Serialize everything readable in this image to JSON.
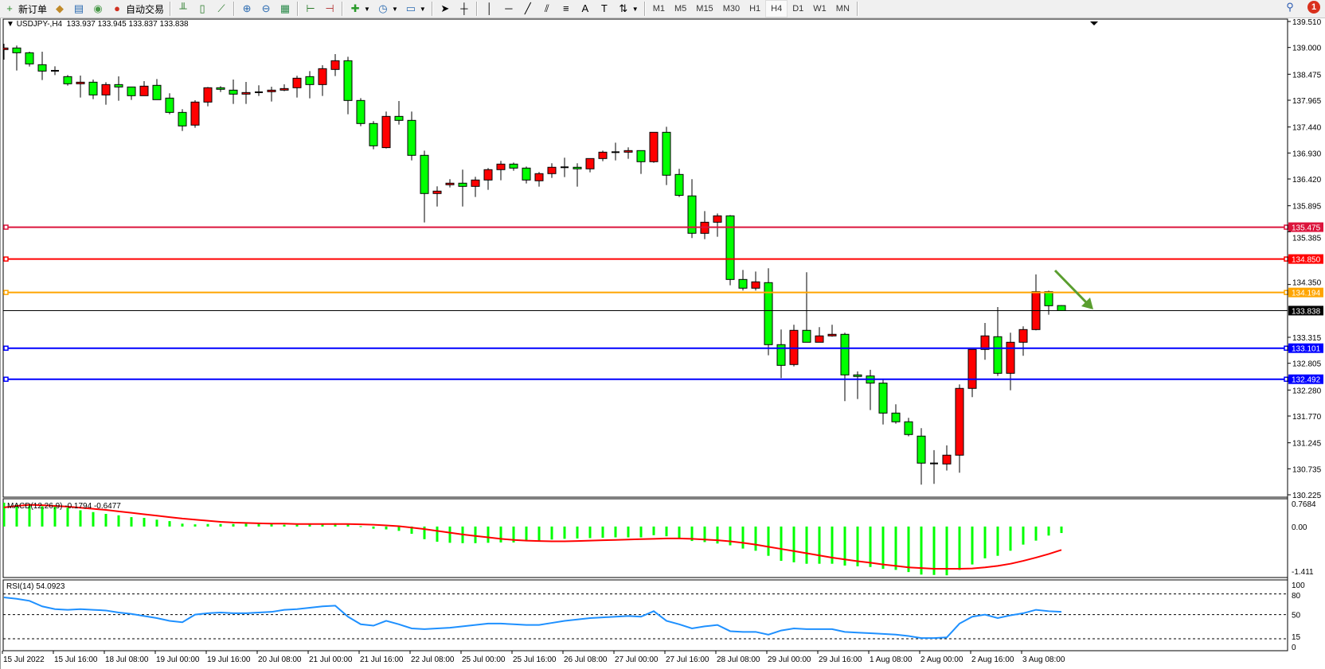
{
  "toolbar": {
    "new_order": "新订单",
    "auto_trading": "自动交易",
    "icons": [
      "new-order-icon",
      "market-watch-icon",
      "data-window-icon",
      "signal-icon",
      "auto-trading-icon",
      "bar-chart-icon",
      "candlestick-icon",
      "line-chart-icon",
      "zoom-in-icon",
      "zoom-out-icon",
      "tile-windows-icon",
      "chart-shift-icon",
      "auto-scroll-icon",
      "indicators-icon",
      "periods-icon",
      "templates-icon",
      "cursor-icon",
      "crosshair-icon",
      "vertical-line-icon",
      "horizontal-line-icon",
      "trendline-icon",
      "equidistant-channel-icon",
      "fibonacci-icon",
      "text-icon",
      "text-label-icon",
      "arrows-icon"
    ],
    "timeframes": [
      "M1",
      "M5",
      "M15",
      "M30",
      "H1",
      "H4",
      "D1",
      "W1",
      "MN"
    ],
    "active_timeframe": "H4",
    "notification_count": "1"
  },
  "chart": {
    "header": "USDJPY-,H4  133.937 133.945 133.837 133.838",
    "symbol": "USDJPY-",
    "timeframe": "H4",
    "ohlc": {
      "open": "133.937",
      "high": "133.945",
      "low": "133.837",
      "close": "133.838"
    },
    "colors": {
      "bull": "#ff0000",
      "bear": "#00ff00",
      "outline": "#000000",
      "arrow": "#5a9e2f"
    },
    "price_axis": [
      "139.510",
      "139.000",
      "138.475",
      "137.965",
      "137.440",
      "136.930",
      "136.420",
      "135.895",
      "135.385",
      "134.350",
      "133.315",
      "132.805",
      "132.280",
      "131.770",
      "131.245",
      "130.735",
      "130.225"
    ],
    "levels": [
      {
        "price": "135.475",
        "color": "#dc143c"
      },
      {
        "price": "134.850",
        "color": "#ff0000"
      },
      {
        "price": "134.194",
        "color": "#ffa500"
      },
      {
        "price": "133.838",
        "color": "#000000",
        "bid": true
      },
      {
        "price": "133.101",
        "color": "#0000ff"
      },
      {
        "price": "132.492",
        "color": "#0000ff"
      }
    ],
    "time_axis": [
      "15 Jul 2022",
      "15 Jul 16:00",
      "18 Jul 08:00",
      "19 Jul 00:00",
      "19 Jul 16:00",
      "20 Jul 08:00",
      "21 Jul 00:00",
      "21 Jul 16:00",
      "22 Jul 08:00",
      "25 Jul 00:00",
      "25 Jul 16:00",
      "26 Jul 08:00",
      "27 Jul 00:00",
      "27 Jul 16:00",
      "28 Jul 08:00",
      "29 Jul 00:00",
      "29 Jul 16:00",
      "1 Aug 08:00",
      "2 Aug 00:00",
      "2 Aug 16:00",
      "3 Aug 08:00"
    ]
  },
  "chart_data": [
    {
      "type": "candlestick",
      "title": "USDJPY-,H4",
      "ylim": [
        130.225,
        139.51
      ],
      "ohlc": [
        [
          138.959,
          139.073,
          138.761,
          138.99
        ],
        [
          138.99,
          139.037,
          138.548,
          138.896
        ],
        [
          138.896,
          138.917,
          138.626,
          138.678
        ],
        [
          138.662,
          138.917,
          138.361,
          138.537
        ],
        [
          138.543,
          138.631,
          138.459,
          138.537
        ],
        [
          138.428,
          138.459,
          138.251,
          138.288
        ],
        [
          138.288,
          138.449,
          138.017,
          138.319
        ],
        [
          138.319,
          138.371,
          137.986,
          138.069
        ],
        [
          138.069,
          138.319,
          137.877,
          138.272
        ],
        [
          138.272,
          138.433,
          137.955,
          138.225
        ],
        [
          138.225,
          138.225,
          137.971,
          138.054
        ],
        [
          138.054,
          138.34,
          138.054,
          138.241
        ],
        [
          138.257,
          138.381,
          137.976,
          137.976
        ],
        [
          138.007,
          138.101,
          137.69,
          137.726
        ],
        [
          137.726,
          137.789,
          137.362,
          137.461
        ],
        [
          137.477,
          137.965,
          137.425,
          137.929
        ],
        [
          137.929,
          138.225,
          137.846,
          138.21
        ],
        [
          138.21,
          138.241,
          138.127,
          138.179
        ],
        [
          138.163,
          138.371,
          137.893,
          138.085
        ],
        [
          138.085,
          138.324,
          137.893,
          138.116
        ],
        [
          138.121,
          138.257,
          138.049,
          138.116
        ],
        [
          138.132,
          138.231,
          137.939,
          138.163
        ],
        [
          138.163,
          138.277,
          138.142,
          138.194
        ],
        [
          138.21,
          138.444,
          138.017,
          138.397
        ],
        [
          138.428,
          138.537,
          138.002,
          138.272
        ],
        [
          138.272,
          138.652,
          138.049,
          138.584
        ],
        [
          138.569,
          138.87,
          138.439,
          138.74
        ],
        [
          138.74,
          138.818,
          137.69,
          137.96
        ],
        [
          137.96,
          138.007,
          137.456,
          137.508
        ],
        [
          137.508,
          137.555,
          137.003,
          137.071
        ],
        [
          137.035,
          137.742,
          137.019,
          137.648
        ],
        [
          137.648,
          137.95,
          137.487,
          137.57
        ],
        [
          137.57,
          137.742,
          136.785,
          136.884
        ],
        [
          136.884,
          136.977,
          135.568,
          136.135
        ],
        [
          136.135,
          136.275,
          135.88,
          136.182
        ],
        [
          136.307,
          136.416,
          136.255,
          136.338
        ],
        [
          136.338,
          136.603,
          135.88,
          136.275
        ],
        [
          136.275,
          136.463,
          136.067,
          136.4
        ],
        [
          136.4,
          136.634,
          136.208,
          136.603
        ],
        [
          136.603,
          136.775,
          136.395,
          136.712
        ],
        [
          136.712,
          136.743,
          136.582,
          136.634
        ],
        [
          136.634,
          136.665,
          136.333,
          136.4
        ],
        [
          136.385,
          136.556,
          136.27,
          136.525
        ],
        [
          136.525,
          136.728,
          136.442,
          136.65
        ],
        [
          136.65,
          136.837,
          136.457,
          136.65
        ],
        [
          136.65,
          136.728,
          136.27,
          136.619
        ],
        [
          136.619,
          136.821,
          136.551,
          136.821
        ],
        [
          136.821,
          136.977,
          136.769,
          136.946
        ],
        [
          136.946,
          137.133,
          136.785,
          136.946
        ],
        [
          136.946,
          137.04,
          136.816,
          136.977
        ],
        [
          136.977,
          136.977,
          136.52,
          136.759
        ],
        [
          136.759,
          137.336,
          136.738,
          137.336
        ],
        [
          137.336,
          137.445,
          136.301,
          136.494
        ],
        [
          136.509,
          136.619,
          136.067,
          136.099
        ],
        [
          136.088,
          136.416,
          135.261,
          135.355
        ],
        [
          135.354,
          135.791,
          135.24,
          135.572
        ],
        [
          135.572,
          135.744,
          135.286,
          135.697
        ],
        [
          135.697,
          135.713,
          134.335,
          134.449
        ],
        [
          134.449,
          134.636,
          134.231,
          134.278
        ],
        [
          134.278,
          134.605,
          134.231,
          134.402
        ],
        [
          134.387,
          134.668,
          132.962,
          133.17
        ],
        [
          133.17,
          133.466,
          132.515,
          132.764
        ],
        [
          132.78,
          133.56,
          132.744,
          133.451
        ],
        [
          133.451,
          134.59,
          133.217,
          133.217
        ],
        [
          133.217,
          133.513,
          133.217,
          133.342
        ],
        [
          133.342,
          133.56,
          133.326,
          133.373
        ],
        [
          133.373,
          133.404,
          132.062,
          132.577
        ],
        [
          132.577,
          132.645,
          132.104,
          132.546
        ],
        [
          132.556,
          132.676,
          131.886,
          132.416
        ],
        [
          132.416,
          132.494,
          131.605,
          131.828
        ],
        [
          131.828,
          132.0,
          131.62,
          131.657
        ],
        [
          131.657,
          131.735,
          131.371,
          131.407
        ],
        [
          131.376,
          131.532,
          130.424,
          130.846
        ],
        [
          130.84,
          131.1,
          130.44,
          130.84
        ],
        [
          130.83,
          131.194,
          130.7,
          131.002
        ],
        [
          131.002,
          132.39,
          130.658,
          132.312
        ],
        [
          132.312,
          133.076,
          132.14,
          133.076
        ],
        [
          133.076,
          133.596,
          132.874,
          133.342
        ],
        [
          133.326,
          133.908,
          132.556,
          132.608
        ],
        [
          132.608,
          133.404,
          132.276,
          133.217
        ],
        [
          133.217,
          133.529,
          132.952,
          133.466
        ],
        [
          133.466,
          134.548,
          133.451,
          134.21
        ],
        [
          134.21,
          134.23,
          133.758,
          133.934
        ],
        [
          133.937,
          133.945,
          133.837,
          133.838
        ]
      ]
    },
    {
      "type": "bar",
      "title": "MACD(12,26,9) -0.1794 -0.6477",
      "ylim": [
        -1.411,
        0.7684
      ],
      "axis_labels": [
        "0.7684",
        "0.00",
        "-1.411"
      ],
      "series": [
        {
          "name": "MACD",
          "color": "#00ff00",
          "values": [
            0.66,
            0.6,
            0.61,
            0.56,
            0.56,
            0.52,
            0.45,
            0.4,
            0.35,
            0.31,
            0.26,
            0.24,
            0.19,
            0.15,
            0.08,
            0.06,
            0.07,
            0.07,
            0.07,
            0.08,
            0.08,
            0.07,
            0.05,
            0.05,
            0.06,
            0.07,
            0.09,
            0.06,
            0.01,
            -0.06,
            -0.08,
            -0.12,
            -0.2,
            -0.35,
            -0.42,
            -0.45,
            -0.46,
            -0.46,
            -0.45,
            -0.44,
            -0.44,
            -0.4,
            -0.39,
            -0.36,
            -0.34,
            -0.33,
            -0.32,
            -0.31,
            -0.3,
            -0.3,
            -0.3,
            -0.24,
            -0.27,
            -0.32,
            -0.4,
            -0.43,
            -0.47,
            -0.52,
            -0.61,
            -0.67,
            -0.81,
            -0.95,
            -0.99,
            -1.03,
            -1.03,
            -1.03,
            -1.08,
            -1.1,
            -1.12,
            -1.17,
            -1.2,
            -1.26,
            -1.33,
            -1.34,
            -1.35,
            -1.2,
            -1.05,
            -0.88,
            -0.81,
            -0.67,
            -0.5,
            -0.39,
            -0.25,
            -0.1794
          ]
        },
        {
          "name": "Signal",
          "color": "#ff0000",
          "values": [
            0.53,
            0.57,
            0.6,
            0.59,
            0.57,
            0.55,
            0.52,
            0.49,
            0.46,
            0.42,
            0.38,
            0.34,
            0.3,
            0.26,
            0.22,
            0.19,
            0.16,
            0.13,
            0.11,
            0.1,
            0.09,
            0.08,
            0.08,
            0.07,
            0.07,
            0.07,
            0.07,
            0.07,
            0.06,
            0.05,
            0.03,
            0.01,
            -0.03,
            -0.07,
            -0.12,
            -0.17,
            -0.22,
            -0.26,
            -0.3,
            -0.34,
            -0.37,
            -0.39,
            -0.4,
            -0.41,
            -0.41,
            -0.4,
            -0.39,
            -0.38,
            -0.37,
            -0.36,
            -0.35,
            -0.34,
            -0.33,
            -0.33,
            -0.34,
            -0.36,
            -0.38,
            -0.41,
            -0.45,
            -0.5,
            -0.56,
            -0.62,
            -0.68,
            -0.74,
            -0.8,
            -0.86,
            -0.91,
            -0.96,
            -1.0,
            -1.05,
            -1.09,
            -1.13,
            -1.15,
            -1.17,
            -1.17,
            -1.17,
            -1.16,
            -1.13,
            -1.09,
            -1.03,
            -0.95,
            -0.86,
            -0.76,
            -0.6477
          ]
        }
      ]
    },
    {
      "type": "line",
      "title": "RSI(14) 54.0923",
      "ylim": [
        0,
        100
      ],
      "axis_labels": [
        "100",
        "80",
        "50",
        "15",
        "0"
      ],
      "levels": [
        80,
        50,
        15
      ],
      "series": [
        {
          "name": "RSI(14)",
          "color": "#1e90ff",
          "values": [
            75,
            73,
            70,
            62,
            58,
            57,
            58,
            57,
            56,
            53,
            51,
            48,
            45,
            41,
            39,
            50,
            52,
            53,
            52,
            52,
            53,
            54,
            57,
            58,
            60,
            62,
            63,
            47,
            36,
            34,
            41,
            36,
            30,
            29,
            30,
            31,
            33,
            35,
            37,
            37,
            36,
            35,
            35,
            38,
            41,
            43,
            45,
            46,
            47,
            48,
            47,
            55,
            41,
            36,
            30,
            33,
            35,
            26,
            25,
            25,
            21,
            27,
            30,
            29,
            29,
            29,
            25,
            24,
            23,
            22,
            21,
            19,
            16,
            16,
            17,
            37,
            47,
            50,
            45,
            49,
            52,
            57,
            55,
            54.0923
          ]
        }
      ]
    }
  ]
}
